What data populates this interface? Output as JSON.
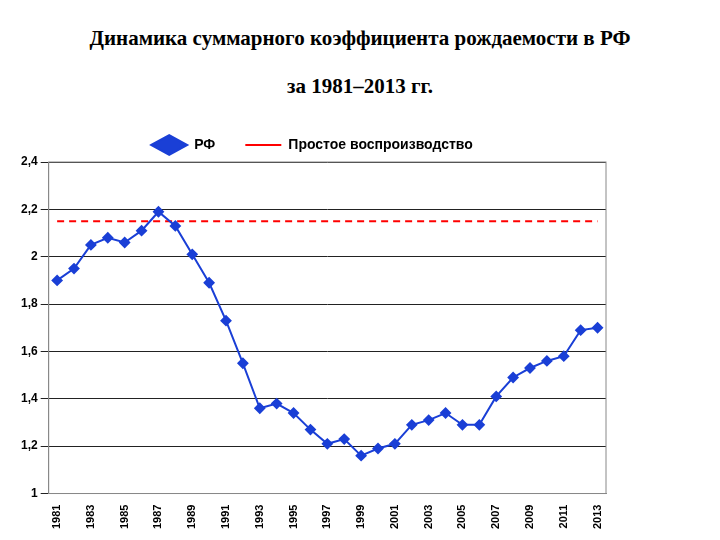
{
  "chart_data": {
    "type": "line",
    "title": "Динамика суммарного коэффициента рождаемости в РФ",
    "subtitle": "за 1981–2013 гг.",
    "categories": [
      1981,
      null,
      1983,
      null,
      1985,
      null,
      1987,
      null,
      1989,
      null,
      1991,
      null,
      1993,
      null,
      1995,
      null,
      1997,
      null,
      1999,
      null,
      2001,
      null,
      2003,
      null,
      2005,
      null,
      2007,
      null,
      2009,
      null,
      2011,
      null,
      2013
    ],
    "series": [
      {
        "name": "РФ",
        "color": "#1a3fd6",
        "marker": "diamond",
        "line_style": "solid",
        "values": [
          1.9,
          1.95,
          2.05,
          2.08,
          2.06,
          2.11,
          2.19,
          2.13,
          2.01,
          1.89,
          1.73,
          1.55,
          1.36,
          1.38,
          1.34,
          1.27,
          1.21,
          1.23,
          1.16,
          1.19,
          1.21,
          1.29,
          1.31,
          1.34,
          1.29,
          1.29,
          1.41,
          1.49,
          1.53,
          1.56,
          1.58,
          1.69,
          1.7
        ]
      },
      {
        "name": "Простое воспроизводство",
        "color": "#ff0000",
        "marker": "none",
        "line_style": "dashed",
        "values": [
          2.15,
          2.15,
          2.15,
          2.15,
          2.15,
          2.15,
          2.15,
          2.15,
          2.15,
          2.15,
          2.15,
          2.15,
          2.15,
          2.15,
          2.15,
          2.15,
          2.15,
          2.15,
          2.15,
          2.15,
          2.15,
          2.15,
          2.15,
          2.15,
          2.15,
          2.15,
          2.15,
          2.15,
          2.15,
          2.15,
          2.15,
          2.15,
          2.15
        ]
      }
    ],
    "ylim": [
      1,
      2.4
    ],
    "yticks": [
      1,
      {
        "value": 1.2,
        "label": "1,2"
      },
      {
        "value": 1.4,
        "label": "1,4"
      },
      {
        "value": 1.6,
        "label": "1,6"
      },
      {
        "value": 1.8,
        "label": "1,8"
      },
      2,
      {
        "value": 2.2,
        "label": "2,2"
      },
      {
        "value": 2.4,
        "label": "2,4"
      }
    ],
    "grid": true,
    "legend": "top"
  }
}
